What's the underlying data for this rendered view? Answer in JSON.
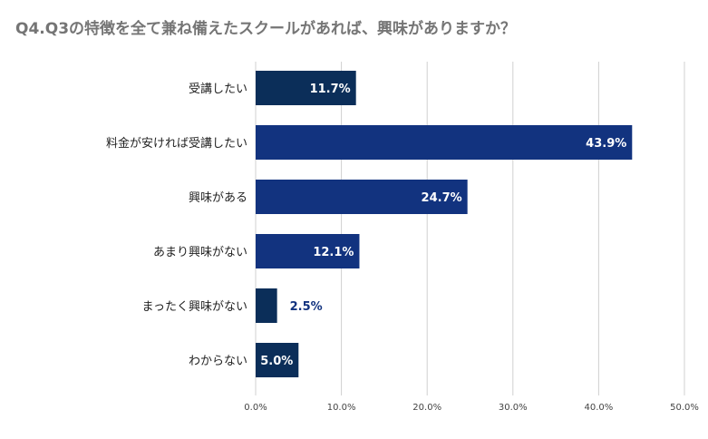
{
  "chart_data": {
    "type": "bar",
    "orientation": "horizontal",
    "title": "Q4.Q3の特徴を全て兼ね備えたスクールがあれば、興味がありますか？",
    "categories": [
      "受講したい",
      "料金が安ければ受講したい",
      "興味がある",
      "あまり興味がない",
      "まったく興味がない",
      "わからない"
    ],
    "values": [
      11.7,
      43.9,
      24.7,
      12.1,
      2.5,
      5.0
    ],
    "data_labels": [
      "11.7%",
      "43.9%",
      "24.7%",
      "12.1%",
      "2.5%",
      "5.0%"
    ],
    "xlim": [
      0,
      50
    ],
    "ticks": [
      0,
      10,
      20,
      30,
      40,
      50
    ],
    "tick_labels": [
      "0.0%",
      "10.0%",
      "20.0%",
      "30.0%",
      "40.0%",
      "50.0%"
    ],
    "xlabel": "",
    "ylabel": "",
    "grid": true,
    "bar_colors": [
      "#0b2e59",
      "#12337f",
      "#12337f",
      "#12337f",
      "#0b2e59",
      "#0b2e59"
    ],
    "label_inside_color": "#ffffff",
    "label_outside_color": "#12337f"
  }
}
